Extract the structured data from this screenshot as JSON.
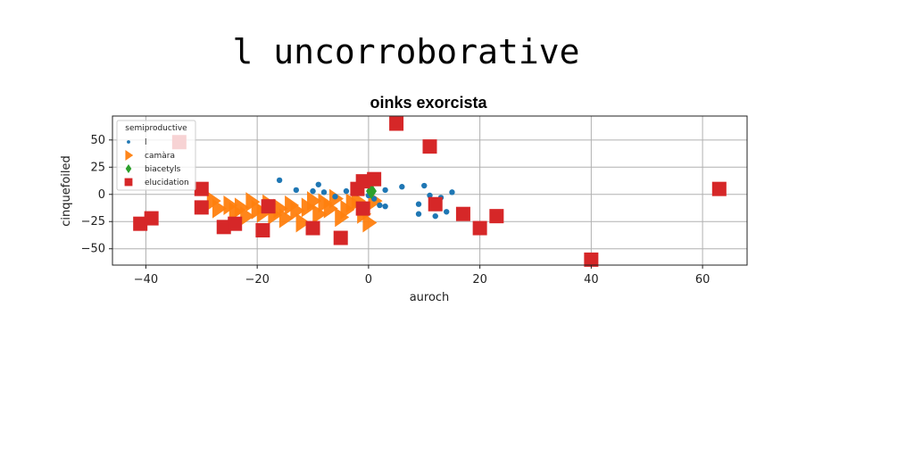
{
  "suptitle": "l uncorroborative",
  "chart_data": {
    "type": "scatter",
    "title": "oinks exorcista",
    "xlabel": "auroch",
    "ylabel": "cinquefoiled",
    "xlim": [
      -46,
      68
    ],
    "ylim": [
      -65,
      72
    ],
    "xticks": [
      -40,
      -20,
      0,
      20,
      40,
      60
    ],
    "yticks": [
      -50,
      -25,
      0,
      25,
      50
    ],
    "grid": true,
    "legend": {
      "title": "semiproductive",
      "placement": "upper-left"
    },
    "series": [
      {
        "name": "l",
        "marker": "circle",
        "color": "#1f77b4",
        "points": [
          [
            -16,
            13
          ],
          [
            -13,
            4
          ],
          [
            -10,
            3
          ],
          [
            -9,
            9
          ],
          [
            -8,
            2
          ],
          [
            -6,
            -2
          ],
          [
            -4,
            3
          ],
          [
            -2,
            1
          ],
          [
            0,
            -1
          ],
          [
            1,
            -4
          ],
          [
            2,
            -10
          ],
          [
            3,
            -11
          ],
          [
            3,
            4
          ],
          [
            6,
            7
          ],
          [
            9,
            -9
          ],
          [
            9,
            -18
          ],
          [
            10,
            8
          ],
          [
            11,
            -1
          ],
          [
            12,
            -20
          ],
          [
            13,
            -3
          ],
          [
            14,
            -16
          ],
          [
            15,
            2
          ]
        ]
      },
      {
        "name": "camàra",
        "marker": "triangle-right",
        "color": "#ff7f0e",
        "points": [
          [
            -28,
            -6
          ],
          [
            -27,
            -13
          ],
          [
            -25,
            -10
          ],
          [
            -24,
            -16
          ],
          [
            -23,
            -12
          ],
          [
            -22,
            -20
          ],
          [
            -21,
            -7
          ],
          [
            -20,
            -14
          ],
          [
            -19,
            -17
          ],
          [
            -18,
            -9
          ],
          [
            -17,
            -19
          ],
          [
            -16,
            -13
          ],
          [
            -15,
            -22
          ],
          [
            -14,
            -10
          ],
          [
            -13,
            -15
          ],
          [
            -12,
            -26
          ],
          [
            -11,
            -12
          ],
          [
            -10,
            -6
          ],
          [
            -9,
            -18
          ],
          [
            -8,
            -8
          ],
          [
            -7,
            -13
          ],
          [
            -6,
            -4
          ],
          [
            -5,
            -21
          ],
          [
            -4,
            -14
          ],
          [
            -3,
            -8
          ],
          [
            -2,
            -6
          ],
          [
            -1,
            -18
          ],
          [
            0,
            -26
          ],
          [
            1,
            -6
          ]
        ]
      },
      {
        "name": "biacetyls",
        "marker": "diamond",
        "color": "#2ca02c",
        "points": [
          [
            0.5,
            3
          ]
        ]
      },
      {
        "name": "elucidation",
        "marker": "square",
        "color": "#d62728",
        "points": [
          [
            -41,
            -27
          ],
          [
            -39,
            -22
          ],
          [
            -34,
            48
          ],
          [
            -30,
            5
          ],
          [
            -30,
            -12
          ],
          [
            -26,
            -30
          ],
          [
            -24,
            -27
          ],
          [
            -19,
            -33
          ],
          [
            -18,
            -11
          ],
          [
            -10,
            -31
          ],
          [
            -5,
            -40
          ],
          [
            -2,
            5
          ],
          [
            -1,
            12
          ],
          [
            -1,
            -13
          ],
          [
            1,
            14
          ],
          [
            5,
            65
          ],
          [
            11,
            44
          ],
          [
            12,
            -9
          ],
          [
            17,
            -18
          ],
          [
            20,
            -31
          ],
          [
            23,
            -20
          ],
          [
            40,
            -60
          ],
          [
            63,
            5
          ]
        ]
      }
    ]
  }
}
